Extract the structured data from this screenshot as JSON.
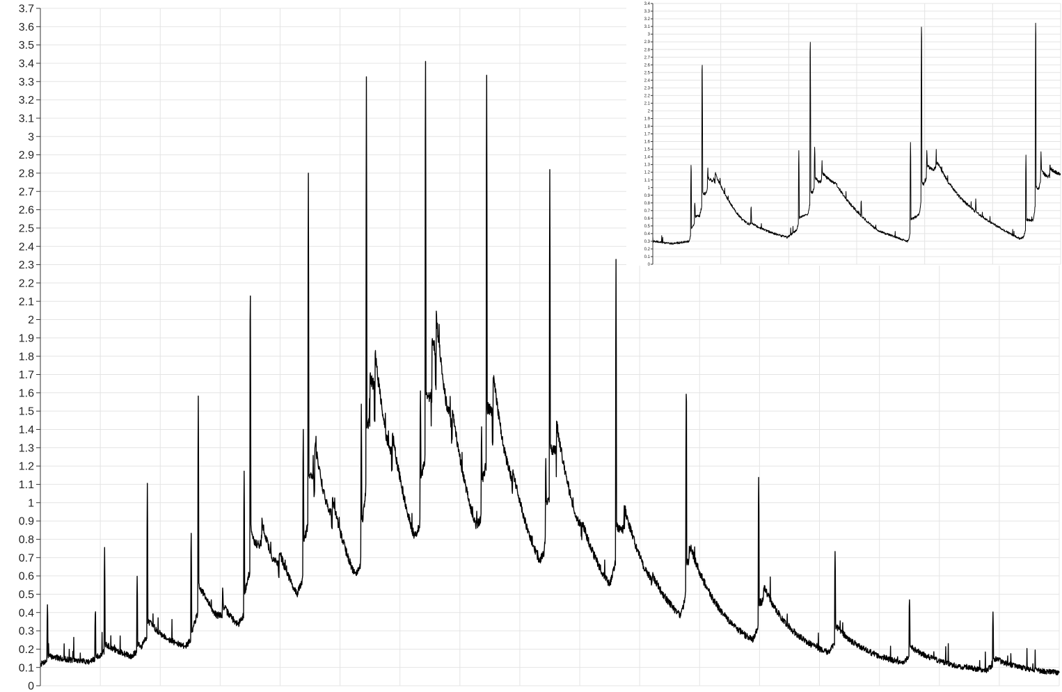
{
  "chart_data": [
    {
      "type": "line",
      "title": "",
      "xlabel": "",
      "ylabel": "",
      "ylim": [
        0,
        3.7
      ],
      "yticks": [
        "0",
        "0.1",
        "0.2",
        "0.3",
        "0.4",
        "0.5",
        "0.6",
        "0.7",
        "0.8",
        "0.9",
        "1",
        "1.1",
        "1.2",
        "1.3",
        "1.4",
        "1.5",
        "1.6",
        "1.7",
        "1.8",
        "1.9",
        "2",
        "2.1",
        "2.2",
        "2.3",
        "2.4",
        "2.5",
        "2.6",
        "2.7",
        "2.8",
        "2.9",
        "3",
        "3.1",
        "3.2",
        "3.3",
        "3.4",
        "3.5",
        "3.6",
        "3.7"
      ],
      "xlim": [
        0,
        100
      ],
      "grid": true,
      "legend": "none",
      "line_color": "#000000",
      "baseline": [
        [
          0,
          0.12
        ],
        [
          6,
          0.12
        ],
        [
          10,
          0.11
        ],
        [
          15,
          0.14
        ],
        [
          20,
          0.15
        ],
        [
          27,
          0.18
        ],
        [
          33,
          0.2
        ],
        [
          40,
          0.24
        ],
        [
          45,
          0.28
        ],
        [
          50,
          0.29
        ],
        [
          56,
          0.29
        ],
        [
          60,
          0.26
        ],
        [
          65,
          0.22
        ],
        [
          70,
          0.17
        ],
        [
          75,
          0.14
        ],
        [
          80,
          0.12
        ],
        [
          85,
          0.1
        ],
        [
          90,
          0.08
        ],
        [
          95,
          0.07
        ],
        [
          100,
          0.06
        ]
      ],
      "peaks": [
        {
          "x": 0.7,
          "peak": 0.46,
          "base": 0.2
        },
        {
          "x": 5.4,
          "peak": 0.44,
          "base": 0.18
        },
        {
          "x": 6.3,
          "peak": 0.77,
          "base": 0.26
        },
        {
          "x": 9.5,
          "peak": 0.59,
          "base": 0.25
        },
        {
          "x": 10.5,
          "peak": 1.1,
          "base": 0.41
        },
        {
          "x": 14.8,
          "peak": 0.88,
          "base": 0.33
        },
        {
          "x": 15.5,
          "peak": 1.55,
          "base": 0.66
        },
        {
          "x": 17.9,
          "peak": 0.55,
          "base": 0.32
        },
        {
          "x": 20.0,
          "peak": 1.17,
          "base": 0.5
        },
        {
          "x": 20.6,
          "peak": 2.27,
          "base": 0.95
        },
        {
          "x": 21.7,
          "peak": 0.86,
          "base": 0.58
        },
        {
          "x": 23.4,
          "peak": 0.62,
          "base": 0.42
        },
        {
          "x": 25.8,
          "peak": 1.4,
          "base": 0.7
        },
        {
          "x": 26.3,
          "peak": 2.88,
          "base": 1.1
        },
        {
          "x": 26.9,
          "peak": 1.1,
          "base": 0.8
        },
        {
          "x": 28.6,
          "peak": 0.77,
          "base": 0.48
        },
        {
          "x": 31.5,
          "peak": 1.51,
          "base": 0.75
        },
        {
          "x": 32.0,
          "peak": 3.2,
          "base": 1.25
        },
        {
          "x": 32.3,
          "peak": 1.59,
          "base": 1.0
        },
        {
          "x": 32.8,
          "peak": 1.37,
          "base": 0.9
        },
        {
          "x": 34.5,
          "peak": 0.88,
          "base": 0.6
        },
        {
          "x": 37.3,
          "peak": 1.63,
          "base": 0.9
        },
        {
          "x": 37.8,
          "peak": 3.54,
          "base": 1.35
        },
        {
          "x": 38.4,
          "peak": 1.62,
          "base": 1.1
        },
        {
          "x": 38.8,
          "peak": 1.5,
          "base": 0.95
        },
        {
          "x": 40.4,
          "peak": 0.88,
          "base": 0.55
        },
        {
          "x": 43.3,
          "peak": 1.42,
          "base": 0.8
        },
        {
          "x": 43.8,
          "peak": 3.47,
          "base": 1.3
        },
        {
          "x": 44.4,
          "peak": 1.38,
          "base": 1.0
        },
        {
          "x": 46.3,
          "peak": 0.77,
          "base": 0.5
        },
        {
          "x": 49.6,
          "peak": 1.2,
          "base": 0.8
        },
        {
          "x": 50.0,
          "peak": 2.81,
          "base": 1.15
        },
        {
          "x": 50.6,
          "peak": 1.34,
          "base": 0.9
        },
        {
          "x": 53.1,
          "peak": 0.65,
          "base": 0.45
        },
        {
          "x": 56.5,
          "peak": 2.31,
          "base": 1.0
        },
        {
          "x": 57.3,
          "peak": 0.98,
          "base": 0.7
        },
        {
          "x": 60.0,
          "peak": 0.53,
          "base": 0.35
        },
        {
          "x": 63.4,
          "peak": 1.66,
          "base": 0.75
        },
        {
          "x": 63.7,
          "peak": 0.77,
          "base": 0.55
        },
        {
          "x": 70.5,
          "peak": 1.14,
          "base": 0.55
        },
        {
          "x": 71.0,
          "peak": 0.55,
          "base": 0.42
        },
        {
          "x": 78.0,
          "peak": 0.73,
          "base": 0.42
        },
        {
          "x": 85.3,
          "peak": 0.49,
          "base": 0.28
        },
        {
          "x": 93.5,
          "peak": 0.39,
          "base": 0.2
        }
      ]
    },
    {
      "type": "line",
      "title": "",
      "xlabel": "",
      "ylabel": "",
      "ylim": [
        0,
        3.4
      ],
      "yticks": [
        "0",
        "0.1",
        "0.2",
        "0.3",
        "0.4",
        "0.5",
        "0.6",
        "0.7",
        "0.8",
        "0.9",
        "1",
        "1.1",
        "1.2",
        "1.3",
        "1.4",
        "1.5",
        "1.6",
        "1.7",
        "1.8",
        "1.9",
        "2",
        "2.1",
        "2.2",
        "2.3",
        "2.4",
        "2.5",
        "2.6",
        "2.7",
        "2.8",
        "2.9",
        "3",
        "3.1",
        "3.2",
        "3.3",
        "3.4"
      ],
      "xlim": [
        0,
        100
      ],
      "grid": true,
      "legend": "none",
      "line_color": "#000000",
      "baseline": [
        [
          0,
          0.3
        ],
        [
          5,
          0.27
        ],
        [
          9,
          0.3
        ],
        [
          15,
          0.6
        ],
        [
          22,
          0.4
        ],
        [
          33,
          0.32
        ],
        [
          38,
          0.55
        ],
        [
          45,
          0.75
        ],
        [
          55,
          0.4
        ],
        [
          63,
          0.28
        ],
        [
          70,
          0.8
        ],
        [
          78,
          0.62
        ],
        [
          90,
          0.32
        ],
        [
          93,
          0.4
        ],
        [
          100,
          0.8
        ]
      ],
      "peaks": [
        {
          "x": 9.4,
          "peak": 1.39,
          "base": 0.6
        },
        {
          "x": 10.3,
          "peak": 0.8,
          "base": 0.6
        },
        {
          "x": 12.1,
          "peak": 2.88,
          "base": 1.0
        },
        {
          "x": 13.5,
          "peak": 1.27,
          "base": 0.95
        },
        {
          "x": 15.2,
          "peak": 1.1,
          "base": 0.9
        },
        {
          "x": 24.1,
          "peak": 0.78,
          "base": 0.45
        },
        {
          "x": 35.8,
          "peak": 1.53,
          "base": 0.7
        },
        {
          "x": 38.6,
          "peak": 3.2,
          "base": 1.1
        },
        {
          "x": 39.7,
          "peak": 1.57,
          "base": 1.0
        },
        {
          "x": 41.5,
          "peak": 1.36,
          "base": 0.95
        },
        {
          "x": 51.1,
          "peak": 0.88,
          "base": 0.5
        },
        {
          "x": 63.2,
          "peak": 1.62,
          "base": 0.8
        },
        {
          "x": 65.9,
          "peak": 3.4,
          "base": 1.2
        },
        {
          "x": 67.2,
          "peak": 1.53,
          "base": 1.05
        },
        {
          "x": 69.5,
          "peak": 1.52,
          "base": 0.95
        },
        {
          "x": 79.2,
          "peak": 0.88,
          "base": 0.5
        },
        {
          "x": 91.5,
          "peak": 1.41,
          "base": 0.75
        },
        {
          "x": 93.9,
          "peak": 3.4,
          "base": 1.2
        },
        {
          "x": 95.2,
          "peak": 1.5,
          "base": 1.0
        },
        {
          "x": 97.4,
          "peak": 1.37,
          "base": 0.9
        }
      ]
    }
  ]
}
